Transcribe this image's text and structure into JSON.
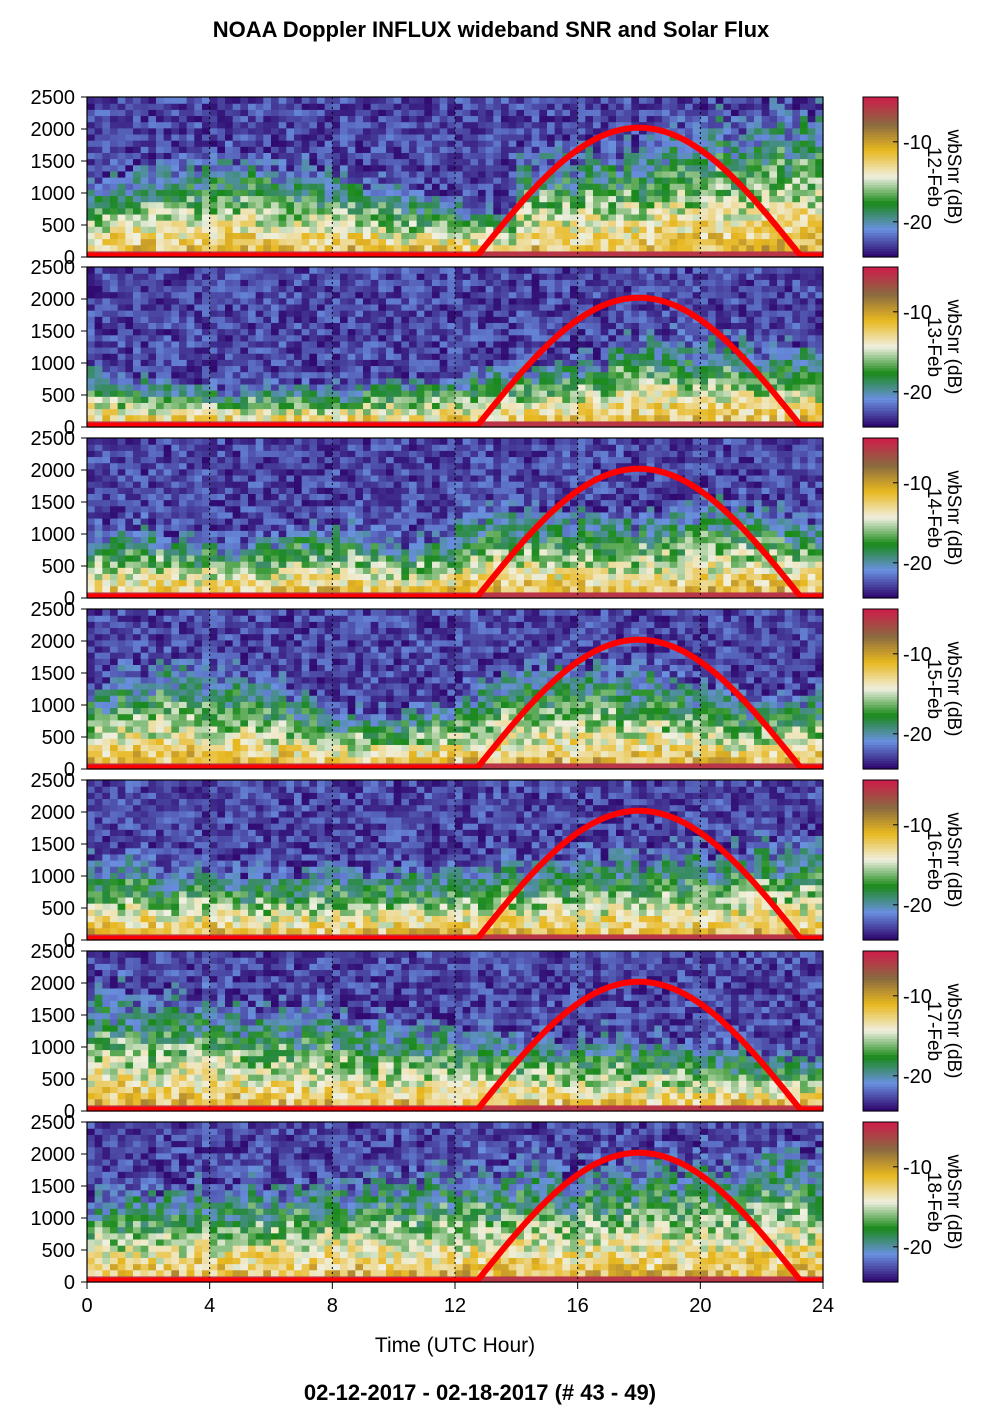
{
  "title": "NOAA Doppler INFLUX wideband SNR and Solar Flux",
  "footer": "02-12-2017 - 02-18-2017   (# 43 - 49)",
  "chart_data": {
    "type": "heatmap",
    "title": "NOAA Doppler INFLUX wideband SNR and Solar Flux",
    "xlabel": "Time (UTC Hour)",
    "xlim": [
      0,
      24
    ],
    "x_ticks": [
      "0",
      "4",
      "8",
      "12",
      "16",
      "20",
      "24"
    ],
    "ylim": [
      0,
      2500
    ],
    "y_ticks": [
      "0",
      "500",
      "1000",
      "1500",
      "2000",
      "2500"
    ],
    "colorbar": {
      "label": "wbSnr (dB)",
      "ticks": [
        "-10",
        "-20"
      ],
      "colors": [
        "#cc1f4a",
        "#8a6a40",
        "#e8b820",
        "#f0f0e0",
        "#1a8a1a",
        "#6a90e0",
        "#300a70"
      ]
    },
    "solar_flux_curve": {
      "color": "#ff0000",
      "start_hour": 12.7,
      "peak_hour": 18.0,
      "end_hour": 23.3,
      "peak_value": 2020
    },
    "panels": [
      {
        "date": "12-Feb"
      },
      {
        "date": "13-Feb"
      },
      {
        "date": "14-Feb"
      },
      {
        "date": "15-Feb"
      },
      {
        "date": "16-Feb"
      },
      {
        "date": "17-Feb"
      },
      {
        "date": "18-Feb"
      }
    ]
  }
}
